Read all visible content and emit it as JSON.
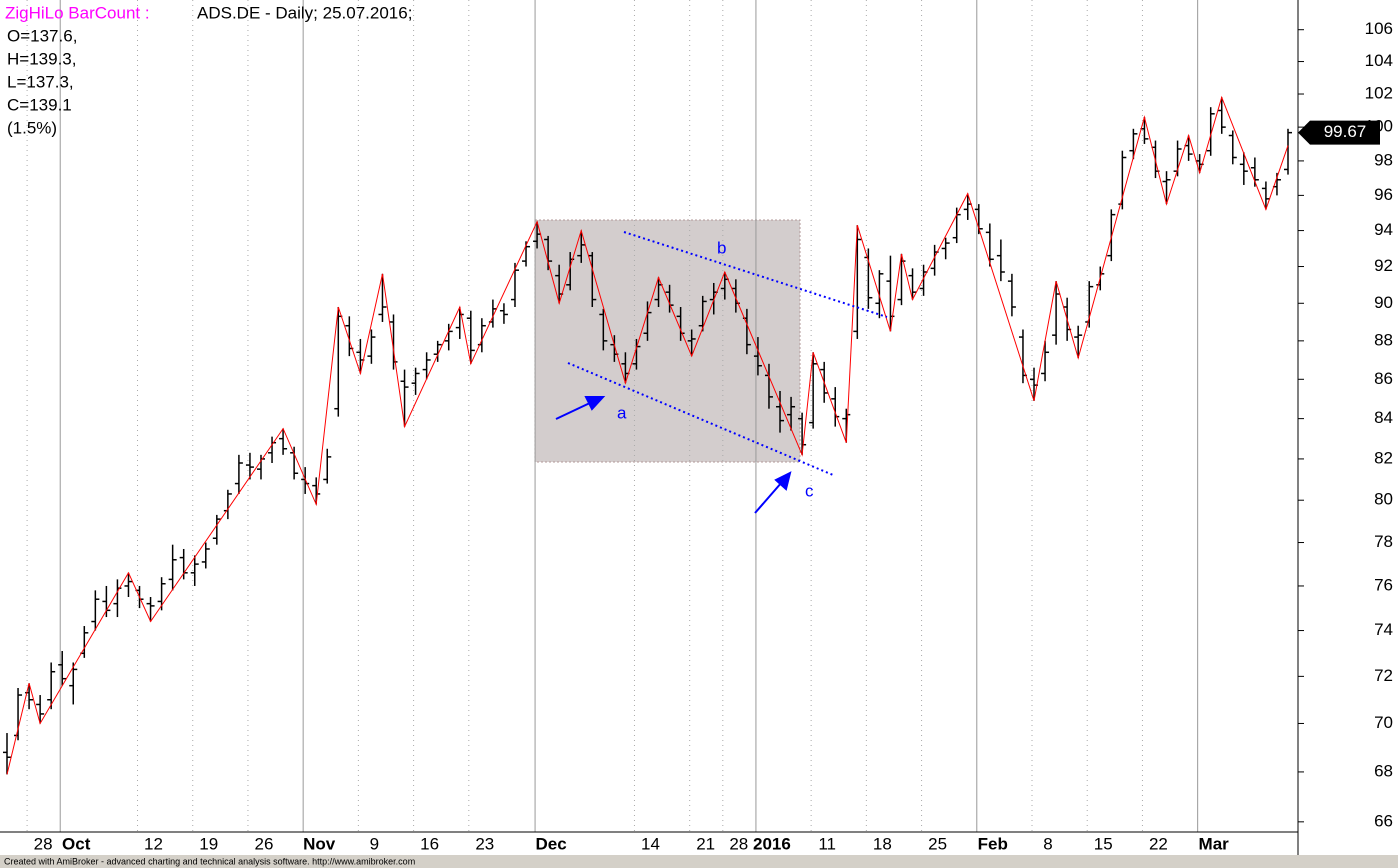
{
  "chart_data": {
    "type": "ohlc",
    "indicator": "ZigHiLo BarCount :",
    "title": "ADS.DE - Daily; 25.07.2016;",
    "info": [
      "O=137.6,",
      "H=139.3,",
      "L=137.3,",
      "C=139.1",
      "(1.5%)"
    ],
    "categories": [
      null,
      null,
      "28",
      null,
      null,
      "Oct",
      null,
      null,
      null,
      null,
      null,
      null,
      "12",
      null,
      null,
      null,
      null,
      "19",
      null,
      null,
      null,
      null,
      "26",
      null,
      null,
      null,
      null,
      "Nov",
      null,
      null,
      null,
      null,
      "9",
      null,
      null,
      null,
      null,
      "16",
      null,
      null,
      null,
      null,
      "23",
      null,
      null,
      null,
      null,
      null,
      "Dec",
      null,
      null,
      null,
      null,
      null,
      null,
      null,
      null,
      "14",
      null,
      null,
      null,
      null,
      "21",
      null,
      null,
      "28",
      null,
      null,
      "2016",
      null,
      null,
      null,
      null,
      "11",
      null,
      null,
      null,
      null,
      "18",
      null,
      null,
      null,
      null,
      "25",
      null,
      null,
      null,
      null,
      "Feb",
      null,
      null,
      null,
      null,
      "8",
      null,
      null,
      null,
      null,
      "15",
      null,
      null,
      null,
      null,
      "22",
      null,
      null,
      null,
      null,
      "Mar",
      null,
      null,
      null,
      null,
      null,
      null,
      null,
      null
    ],
    "open": [
      68.8,
      69.5,
      71.3,
      70.8,
      71.0,
      72.5,
      71.6,
      73.0,
      74.4,
      75.3,
      75.2,
      76.0,
      75.8,
      75.2,
      75.3,
      76.3,
      77.3,
      76.6,
      77.1,
      78.2,
      79.5,
      80.8,
      81.7,
      81.5,
      82.3,
      83.0,
      82.3,
      81.0,
      80.7,
      81.0,
      84.5,
      88.8,
      87.4,
      87.2,
      89.4,
      89.0,
      85.9,
      85.8,
      86.5,
      87.3,
      88.0,
      88.7,
      89.2,
      87.8,
      89.0,
      89.6,
      90.2,
      92.3,
      93.4,
      93.5,
      91.5,
      91.0,
      92.6,
      92.6,
      89.4,
      87.8,
      86.8,
      86.8,
      88.4,
      90.2,
      90.6,
      89.3,
      88.0,
      88.8,
      90.2,
      90.8,
      90.8,
      89.2,
      87.2,
      86.2,
      84.6,
      84.2,
      84.0,
      83.8,
      86.5,
      85.0,
      84.0,
      88.5,
      92.5,
      90.0,
      91.2,
      90.2,
      91.5,
      90.8,
      91.9,
      93.0,
      93.6,
      95.2,
      95.2,
      93.9,
      92.6,
      91.2,
      88.2,
      86.0,
      86.3,
      88.3,
      89.8,
      88.2,
      89.0,
      91.0,
      92.6,
      95.5,
      98.6,
      99.9,
      98.8,
      96.8,
      97.4,
      98.9,
      98.0,
      98.6,
      101.0,
      99.5,
      97.8,
      97.6,
      96.4,
      96.5,
      97.5
    ],
    "high": [
      69.6,
      71.5,
      71.7,
      71.2,
      72.6,
      73.1,
      72.6,
      74.2,
      75.8,
      76.0,
      76.3,
      76.6,
      76.0,
      75.5,
      76.4,
      77.9,
      77.7,
      77.4,
      78.0,
      79.3,
      80.5,
      82.2,
      82.3,
      82.2,
      83.1,
      83.5,
      82.6,
      81.6,
      81.1,
      82.5,
      89.8,
      89.3,
      88.1,
      88.6,
      91.6,
      89.4,
      86.5,
      86.6,
      87.4,
      88.0,
      88.9,
      89.8,
      89.6,
      89.2,
      90.2,
      90.0,
      92.2,
      93.4,
      94.5,
      93.7,
      92.1,
      92.8,
      94.0,
      92.8,
      89.7,
      88.3,
      87.4,
      88.1,
      90.1,
      91.4,
      91.0,
      89.8,
      88.6,
      90.4,
      91.1,
      91.7,
      91.3,
      89.7,
      88.2,
      86.8,
      85.4,
      85.1,
      84.3,
      87.4,
      86.9,
      85.6,
      84.5,
      94.3,
      93.0,
      91.8,
      92.6,
      92.7,
      91.9,
      92.1,
      93.2,
      93.6,
      95.3,
      96.1,
      95.5,
      94.4,
      93.5,
      91.6,
      88.6,
      86.6,
      88.0,
      91.2,
      90.3,
      88.8,
      91.2,
      92.0,
      95.2,
      98.6,
      99.9,
      100.6,
      99.2,
      97.4,
      99.2,
      99.5,
      98.4,
      101.2,
      101.8,
      99.8,
      98.5,
      98.2,
      96.8,
      97.3,
      99.9
    ],
    "low": [
      67.9,
      69.3,
      70.6,
      70.0,
      70.6,
      71.6,
      70.8,
      72.8,
      74.0,
      74.6,
      74.6,
      75.5,
      75.0,
      74.4,
      74.9,
      75.8,
      76.3,
      76.0,
      76.8,
      77.9,
      79.1,
      80.3,
      81.0,
      81.0,
      81.8,
      82.2,
      81.0,
      80.3,
      79.8,
      80.8,
      84.1,
      87.2,
      86.3,
      86.8,
      89.0,
      86.5,
      83.6,
      85.2,
      86.0,
      86.9,
      87.5,
      88.1,
      86.8,
      87.4,
      88.7,
      88.9,
      89.8,
      92.0,
      93.0,
      91.8,
      90.0,
      90.7,
      92.2,
      89.8,
      87.5,
      86.9,
      85.8,
      86.5,
      88.0,
      89.8,
      89.5,
      88.0,
      87.2,
      88.5,
      89.4,
      90.2,
      89.5,
      87.3,
      86.2,
      84.5,
      83.3,
      83.4,
      82.2,
      83.5,
      84.8,
      83.6,
      82.8,
      88.1,
      89.7,
      89.2,
      88.5,
      89.9,
      90.2,
      90.4,
      91.5,
      92.4,
      93.3,
      94.6,
      93.8,
      92.0,
      91.2,
      89.3,
      85.8,
      84.9,
      85.9,
      87.8,
      88.0,
      87.1,
      88.7,
      90.7,
      92.3,
      95.2,
      98.1,
      99.0,
      97.0,
      95.5,
      97.1,
      98.0,
      97.3,
      98.3,
      99.6,
      97.8,
      96.6,
      96.5,
      95.2,
      96.0,
      97.2
    ],
    "close": [
      68.6,
      71.2,
      71.0,
      70.4,
      72.2,
      71.9,
      72.3,
      73.9,
      75.4,
      74.9,
      75.9,
      76.2,
      75.4,
      75.1,
      76.1,
      77.2,
      76.6,
      77.0,
      77.7,
      79.1,
      80.3,
      81.8,
      81.6,
      82.0,
      82.8,
      82.5,
      81.3,
      80.8,
      80.3,
      82.1,
      89.3,
      87.6,
      87.0,
      88.2,
      89.8,
      86.9,
      85.6,
      86.3,
      87.0,
      87.8,
      88.5,
      89.4,
      87.5,
      88.8,
      89.7,
      89.4,
      91.8,
      93.1,
      93.8,
      92.3,
      90.5,
      92.4,
      93.2,
      90.2,
      88.0,
      87.3,
      86.3,
      87.7,
      89.5,
      91.0,
      89.9,
      88.4,
      88.1,
      90.1,
      90.6,
      91.3,
      90.0,
      87.8,
      86.7,
      85.1,
      83.9,
      84.6,
      82.7,
      86.8,
      85.3,
      84.1,
      84.2,
      93.5,
      90.3,
      91.6,
      89.3,
      92.3,
      90.6,
      91.7,
      92.8,
      93.3,
      94.9,
      95.5,
      94.1,
      92.4,
      91.7,
      89.8,
      86.2,
      85.7,
      87.4,
      90.5,
      88.6,
      88.3,
      90.9,
      91.6,
      94.9,
      98.2,
      99.6,
      99.3,
      97.4,
      96.9,
      98.7,
      98.4,
      97.8,
      100.8,
      100.0,
      98.2,
      97.4,
      96.9,
      95.8,
      96.9,
      99.67
    ],
    "color": "#000000",
    "zigzag": {
      "color": "#ff0000",
      "x": [
        0,
        2,
        3,
        11,
        13,
        25,
        28,
        30,
        32,
        34,
        36,
        41,
        42,
        48,
        50,
        52,
        56,
        59,
        62,
        65,
        72,
        73,
        76,
        77,
        80,
        81,
        82,
        87,
        93,
        95,
        97,
        103,
        105,
        107,
        108,
        110,
        114,
        116
      ],
      "values": [
        67.9,
        71.7,
        70.0,
        76.6,
        74.4,
        83.5,
        79.8,
        89.8,
        86.3,
        91.6,
        83.6,
        89.8,
        86.8,
        94.5,
        90.0,
        94.0,
        85.8,
        91.4,
        87.2,
        91.7,
        82.2,
        87.4,
        82.8,
        94.3,
        88.5,
        92.7,
        90.2,
        96.1,
        84.9,
        91.2,
        87.1,
        100.6,
        95.5,
        99.5,
        97.3,
        101.8,
        95.2,
        98.9
      ]
    },
    "ylim": [
      65.6,
      107.9
    ],
    "log_scale": true,
    "yticks": [
      66,
      68,
      70,
      72,
      74,
      76,
      78,
      80,
      82,
      84,
      86,
      88,
      90,
      92,
      94,
      96,
      98,
      100,
      102,
      104,
      106
    ],
    "grid": "x",
    "annotations": [
      "a",
      "b",
      "c"
    ],
    "footer": "Created with AmiBroker - advanced charting and technical analysis software. http://www.amibroker.com"
  }
}
